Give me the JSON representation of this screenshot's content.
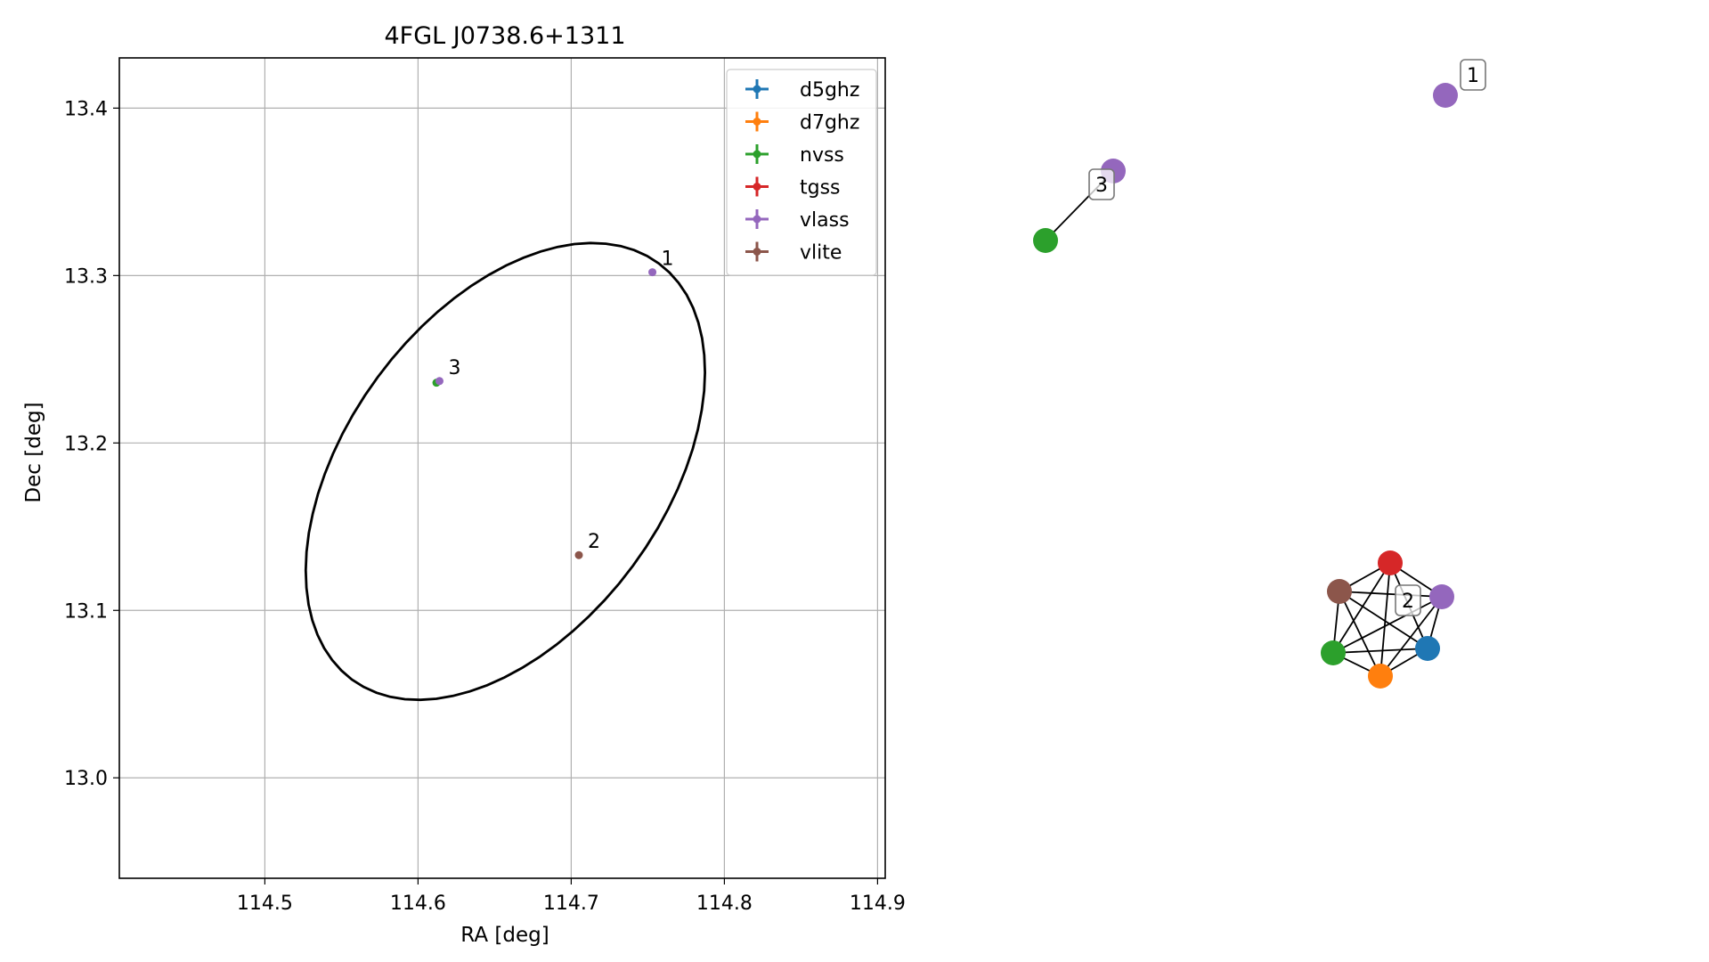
{
  "chart_data": [
    {
      "type": "scatter",
      "title": "4FGL J0738.6+1311",
      "xlabel": "RA [deg]",
      "ylabel": "Dec [deg]",
      "xlim": [
        114.405,
        114.905
      ],
      "ylim": [
        12.94,
        13.43
      ],
      "x_ticks": [
        "114.5",
        "114.6",
        "114.7",
        "114.8",
        "114.9"
      ],
      "y_ticks": [
        "13.0",
        "13.1",
        "13.2",
        "13.3",
        "13.4"
      ],
      "grid": true,
      "legend_position": "upper right",
      "series": [
        {
          "name": "d5ghz",
          "color": "#1f77b4",
          "points": []
        },
        {
          "name": "d7ghz",
          "color": "#ff7f0e",
          "points": []
        },
        {
          "name": "nvss",
          "color": "#2ca02c",
          "points": [
            {
              "x": 114.612,
              "y": 13.236
            }
          ]
        },
        {
          "name": "tgss",
          "color": "#d62728",
          "points": []
        },
        {
          "name": "vlass",
          "color": "#9467bd",
          "points": [
            {
              "x": 114.753,
              "y": 13.302
            },
            {
              "x": 114.614,
              "y": 13.237
            }
          ]
        },
        {
          "name": "vlite",
          "color": "#8c564b",
          "points": [
            {
              "x": 114.705,
              "y": 13.133
            }
          ]
        }
      ],
      "source_labels": [
        {
          "text": "1",
          "x": 114.753,
          "y": 13.302
        },
        {
          "text": "2",
          "x": 114.705,
          "y": 13.133
        },
        {
          "text": "3",
          "x": 114.614,
          "y": 13.237
        }
      ],
      "ellipse": {
        "center": [
          114.657,
          13.183
        ],
        "semi_major": 0.16,
        "semi_minor": 0.1,
        "angle_deg": 48
      }
    },
    {
      "type": "network",
      "nodes": [
        {
          "id": "n1",
          "color": "#9467bd",
          "group": "1"
        },
        {
          "id": "n3a",
          "color": "#9467bd",
          "group": "3"
        },
        {
          "id": "n3b",
          "color": "#2ca02c",
          "group": "3"
        },
        {
          "id": "tgss",
          "color": "#d62728",
          "group": "2"
        },
        {
          "id": "vlite",
          "color": "#8c564b",
          "group": "2"
        },
        {
          "id": "vlass",
          "color": "#9467bd",
          "group": "2"
        },
        {
          "id": "nvss",
          "color": "#2ca02c",
          "group": "2"
        },
        {
          "id": "d5ghz",
          "color": "#1f77b4",
          "group": "2"
        },
        {
          "id": "d7ghz",
          "color": "#ff7f0e",
          "group": "2"
        }
      ],
      "edges": [
        [
          "n3a",
          "n3b"
        ],
        [
          "tgss",
          "vlite"
        ],
        [
          "tgss",
          "vlass"
        ],
        [
          "tgss",
          "nvss"
        ],
        [
          "tgss",
          "d5ghz"
        ],
        [
          "tgss",
          "d7ghz"
        ],
        [
          "vlite",
          "vlass"
        ],
        [
          "vlite",
          "nvss"
        ],
        [
          "vlite",
          "d5ghz"
        ],
        [
          "vlite",
          "d7ghz"
        ],
        [
          "vlass",
          "nvss"
        ],
        [
          "vlass",
          "d5ghz"
        ],
        [
          "vlass",
          "d7ghz"
        ],
        [
          "nvss",
          "d5ghz"
        ],
        [
          "nvss",
          "d7ghz"
        ],
        [
          "d5ghz",
          "d7ghz"
        ]
      ],
      "group_labels": [
        {
          "text": "1",
          "group": "1"
        },
        {
          "text": "2",
          "group": "2"
        },
        {
          "text": "3",
          "group": "3"
        }
      ]
    }
  ]
}
